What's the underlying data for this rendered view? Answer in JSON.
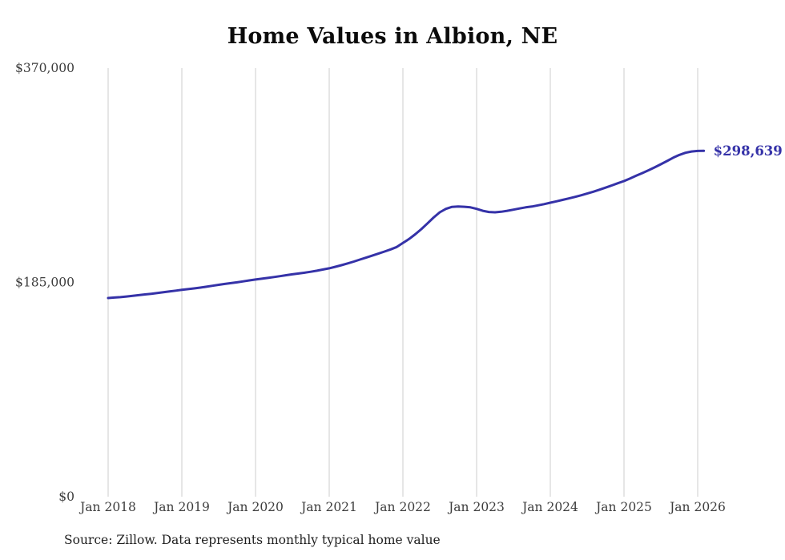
{
  "chart_data": {
    "type": "line",
    "title": "Home Values in Albion, NE",
    "source": "Source: Zillow. Data represents monthly typical home value",
    "end_label": "$298,639",
    "latest_value": 298639,
    "line_color": "#3532a8",
    "grid_color": "#cccccc",
    "axis_label_color": "#3d3d3d",
    "grid": "vertical-only",
    "legend": "none",
    "ylim": [
      0,
      370000
    ],
    "y_ticks": [
      {
        "value": 0,
        "label": "$0"
      },
      {
        "value": 185000,
        "label": "$185,000"
      },
      {
        "value": 370000,
        "label": "$370,000"
      }
    ],
    "x_tick_labels": [
      "Jan 2018",
      "Jan 2019",
      "Jan 2020",
      "Jan 2021",
      "Jan 2022",
      "Jan 2023",
      "Jan 2024",
      "Jan 2025",
      "Jan 2026"
    ],
    "x_start": "2018-01",
    "x_end": "2026-02",
    "x_frequency": "monthly",
    "values": [
      171500,
      171900,
      172300,
      172800,
      173400,
      174000,
      174600,
      175200,
      175800,
      176500,
      177200,
      177900,
      178600,
      179200,
      179800,
      180500,
      181300,
      182100,
      182900,
      183700,
      184400,
      185100,
      185900,
      186700,
      187500,
      188200,
      188900,
      189600,
      190400,
      191200,
      192000,
      192700,
      193400,
      194200,
      195100,
      196100,
      197200,
      198500,
      199900,
      201400,
      203000,
      204700,
      206400,
      208100,
      209800,
      211600,
      213500,
      215600,
      219000,
      222500,
      226500,
      231000,
      236000,
      241000,
      245500,
      248500,
      250200,
      250500,
      250300,
      249800,
      248500,
      246800,
      245800,
      245500,
      246000,
      246800,
      247800,
      248800,
      249800,
      250500,
      251500,
      252600,
      253800,
      255000,
      256200,
      257500,
      258800,
      260200,
      261700,
      263300,
      265000,
      266800,
      268700,
      270600,
      272500,
      274800,
      277100,
      279400,
      281800,
      284300,
      287000,
      289800,
      292600,
      295000,
      296900,
      298000,
      298500,
      298639
    ]
  }
}
